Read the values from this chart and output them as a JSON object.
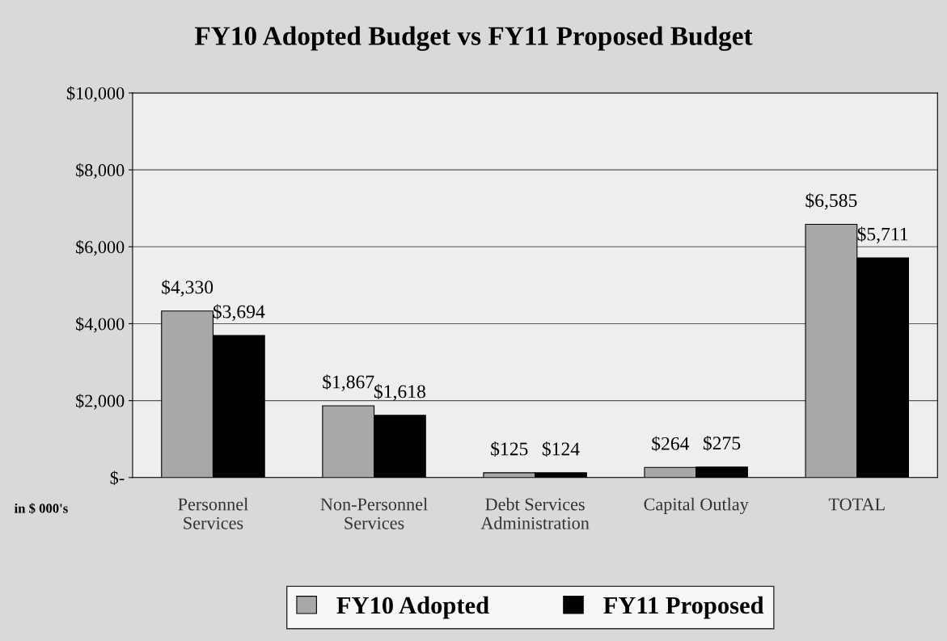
{
  "chart_data": {
    "type": "bar",
    "title": "FY10 Adopted Budget vs FY11 Proposed Budget",
    "categories": [
      "Personnel\nServices",
      "Non-Personnel\nServices",
      "Debt Services\nAdministration",
      "Capital Outlay",
      "TOTAL"
    ],
    "series": [
      {
        "name": "FY10 Adopted",
        "color": "#a8a8a8",
        "values": [
          4330,
          1867,
          125,
          264,
          6585
        ],
        "value_labels": [
          "$4,330",
          "$1,867",
          "$125",
          "$264",
          "$6,585"
        ]
      },
      {
        "name": "FY11 Proposed",
        "color": "#000000",
        "values": [
          3694,
          1618,
          124,
          275,
          5711
        ],
        "value_labels": [
          "$3,694",
          "$1,618",
          "$124",
          "$275",
          "$5,711"
        ]
      }
    ],
    "ylim": [
      0,
      10000
    ],
    "yticks": [
      {
        "value": 0,
        "label": "$-"
      },
      {
        "value": 2000,
        "label": "$2,000"
      },
      {
        "value": 4000,
        "label": "$4,000"
      },
      {
        "value": 6000,
        "label": "$6,000"
      },
      {
        "value": 8000,
        "label": "$8,000"
      },
      {
        "value": 10000,
        "label": "$10,000"
      }
    ],
    "grid": "y",
    "legend": "bottom",
    "annotations": [
      "in $ 000's"
    ]
  }
}
